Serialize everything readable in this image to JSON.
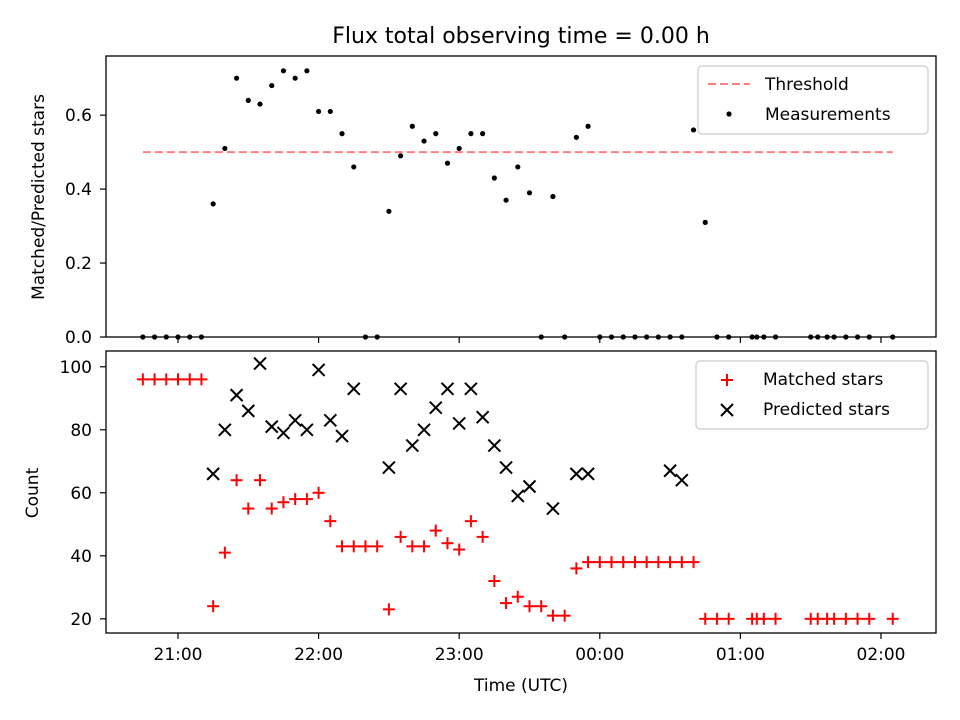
{
  "chart_data": [
    {
      "type": "scatter",
      "title": "Flux total observing time = 0.00 h",
      "xlabel": "",
      "ylabel": "Matched/Predicted stars",
      "ylim": [
        0,
        0.76
      ],
      "yticks": [
        "0.0",
        "0.2",
        "0.4",
        "0.6"
      ],
      "grid": false,
      "legend": "top-right",
      "threshold": {
        "name": "Threshold",
        "value": 0.5,
        "x_start": "20:45",
        "x_end": "02:05",
        "color": "#ff7f7f",
        "style": "dashed"
      },
      "series": [
        {
          "name": "Measurements",
          "color": "#000000",
          "marker": "dot",
          "x": [
            "20:45",
            "20:50",
            "20:55",
            "21:00",
            "21:05",
            "21:10",
            "21:15",
            "21:20",
            "21:25",
            "21:30",
            "21:35",
            "21:40",
            "21:45",
            "21:50",
            "21:55",
            "22:00",
            "22:05",
            "22:10",
            "22:15",
            "22:20",
            "22:25",
            "22:30",
            "22:35",
            "22:40",
            "22:45",
            "22:50",
            "22:55",
            "23:00",
            "23:05",
            "23:10",
            "23:15",
            "23:20",
            "23:25",
            "23:30",
            "23:35",
            "23:40",
            "23:45",
            "23:50",
            "23:55",
            "00:00",
            "00:05",
            "00:10",
            "00:15",
            "00:20",
            "00:25",
            "00:30",
            "00:35",
            "00:40",
            "00:45",
            "00:50",
            "00:55",
            "01:05",
            "01:07",
            "01:10",
            "01:15",
            "01:30",
            "01:33",
            "01:37",
            "01:40",
            "01:45",
            "01:50",
            "01:55",
            "02:05"
          ],
          "y": [
            0,
            0,
            0,
            0,
            0,
            0,
            0.36,
            0.51,
            0.7,
            0.64,
            0.63,
            0.68,
            0.72,
            0.7,
            0.72,
            0.61,
            0.61,
            0.55,
            0.46,
            0,
            0,
            0.34,
            0.49,
            0.57,
            0.53,
            0.55,
            0.47,
            0.51,
            0.55,
            0.55,
            0.43,
            0.37,
            0.46,
            0.39,
            0,
            0.38,
            0,
            0.54,
            0.57,
            0,
            0,
            0,
            0,
            0,
            0,
            0,
            0,
            0.56,
            0.31,
            0,
            0,
            0,
            0,
            0,
            0,
            0,
            0,
            0,
            0,
            0,
            0,
            0,
            0
          ]
        }
      ]
    },
    {
      "type": "scatter",
      "title": "",
      "xlabel": "Time (UTC)",
      "ylabel": "Count",
      "ylim": [
        15.5,
        105
      ],
      "yticks": [
        "20",
        "40",
        "60",
        "80",
        "100"
      ],
      "xticks": [
        "21:00",
        "22:00",
        "23:00",
        "00:00",
        "01:00",
        "02:00"
      ],
      "grid": false,
      "legend": "top-right",
      "series": [
        {
          "name": "Matched stars",
          "color": "#ff0000",
          "marker": "plus",
          "x": [
            "20:45",
            "20:50",
            "20:55",
            "21:00",
            "21:05",
            "21:10",
            "21:15",
            "21:20",
            "21:25",
            "21:30",
            "21:35",
            "21:40",
            "21:45",
            "21:50",
            "21:55",
            "22:00",
            "22:05",
            "22:10",
            "22:15",
            "22:20",
            "22:25",
            "22:30",
            "22:35",
            "22:40",
            "22:45",
            "22:50",
            "22:55",
            "23:00",
            "23:05",
            "23:10",
            "23:15",
            "23:20",
            "23:25",
            "23:30",
            "23:35",
            "23:40",
            "23:45",
            "23:50",
            "23:55",
            "00:00",
            "00:05",
            "00:10",
            "00:15",
            "00:20",
            "00:25",
            "00:30",
            "00:35",
            "00:40",
            "00:45",
            "00:50",
            "00:55",
            "01:05",
            "01:07",
            "01:10",
            "01:15",
            "01:30",
            "01:33",
            "01:37",
            "01:40",
            "01:45",
            "01:50",
            "01:55",
            "02:05"
          ],
          "y": [
            96,
            96,
            96,
            96,
            96,
            96,
            24,
            41,
            64,
            55,
            64,
            55,
            57,
            58,
            58,
            60,
            51,
            43,
            43,
            43,
            43,
            23,
            46,
            43,
            43,
            48,
            44,
            42,
            51,
            46,
            32,
            25,
            27,
            24,
            24,
            21,
            21,
            36,
            38,
            38,
            38,
            38,
            38,
            38,
            38,
            38,
            38,
            38,
            20,
            20,
            20,
            20,
            20,
            20,
            20,
            20,
            20,
            20,
            20,
            20,
            20,
            20,
            20
          ]
        },
        {
          "name": "Predicted stars",
          "color": "#000000",
          "marker": "x",
          "x": [
            "21:15",
            "21:20",
            "21:25",
            "21:30",
            "21:35",
            "21:40",
            "21:45",
            "21:50",
            "21:55",
            "22:00",
            "22:05",
            "22:10",
            "22:15",
            "22:30",
            "22:35",
            "22:40",
            "22:45",
            "22:50",
            "22:55",
            "23:00",
            "23:05",
            "23:10",
            "23:15",
            "23:20",
            "23:25",
            "23:30",
            "23:40",
            "23:50",
            "23:55",
            "00:30",
            "00:35"
          ],
          "y": [
            66,
            80,
            91,
            86,
            101,
            81,
            79,
            83,
            80,
            99,
            83,
            78,
            93,
            68,
            93,
            75,
            80,
            87,
            93,
            82,
            93,
            84,
            75,
            68,
            59,
            62,
            55,
            66,
            66,
            67,
            64
          ]
        }
      ]
    }
  ]
}
